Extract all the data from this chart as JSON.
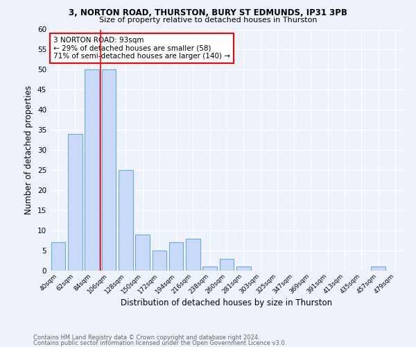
{
  "title1": "3, NORTON ROAD, THURSTON, BURY ST EDMUNDS, IP31 3PB",
  "title2": "Size of property relative to detached houses in Thurston",
  "xlabel": "Distribution of detached houses by size in Thurston",
  "ylabel": "Number of detached properties",
  "bar_labels": [
    "40sqm",
    "62sqm",
    "84sqm",
    "106sqm",
    "128sqm",
    "150sqm",
    "172sqm",
    "194sqm",
    "216sqm",
    "238sqm",
    "260sqm",
    "281sqm",
    "303sqm",
    "325sqm",
    "347sqm",
    "369sqm",
    "391sqm",
    "413sqm",
    "435sqm",
    "457sqm",
    "479sqm"
  ],
  "bar_values": [
    7,
    34,
    50,
    50,
    25,
    9,
    5,
    7,
    8,
    1,
    3,
    1,
    0,
    0,
    0,
    0,
    0,
    0,
    0,
    1,
    0
  ],
  "bar_color": "#c9daf8",
  "bar_edge_color": "#6fa8dc",
  "annotation_text": "3 NORTON ROAD: 93sqm\n← 29% of detached houses are smaller (58)\n71% of semi-detached houses are larger (140) →",
  "annotation_box_color": "white",
  "annotation_box_edge_color": "red",
  "red_line_index": 2,
  "ylim": [
    0,
    60
  ],
  "yticks": [
    0,
    5,
    10,
    15,
    20,
    25,
    30,
    35,
    40,
    45,
    50,
    55,
    60
  ],
  "background_color": "#eef2fb",
  "grid_color": "white",
  "footer_line1": "Contains HM Land Registry data © Crown copyright and database right 2024.",
  "footer_line2": "Contains public sector information licensed under the Open Government Licence v3.0."
}
